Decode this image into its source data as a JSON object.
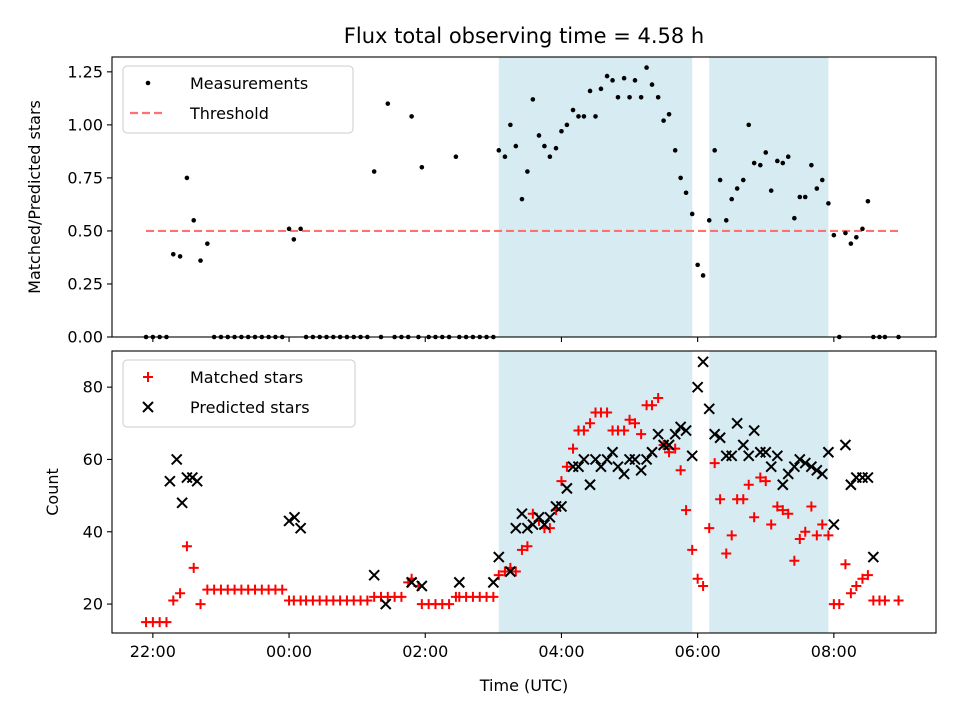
{
  "chart_data": [
    {
      "type": "scatter",
      "title": "Flux total observing time = 4.58 h",
      "xlabel": "",
      "ylabel": "Matched/Predicted stars",
      "ylim": [
        0,
        1.32
      ],
      "yticks": [
        "0.00",
        "0.25",
        "0.50",
        "0.75",
        "1.00",
        "1.25"
      ],
      "ytick_values": [
        0,
        0.25,
        0.5,
        0.75,
        1.0,
        1.25
      ],
      "x_unit": "hours UTC since 00:00",
      "xlim": [
        -2.6,
        9.5
      ],
      "legend": {
        "placement": "top-left",
        "entries": [
          "Measurements",
          "Threshold"
        ]
      },
      "shaded_intervals": [
        [
          3.08,
          5.92
        ],
        [
          6.17,
          7.92
        ]
      ],
      "threshold": {
        "name": "Threshold",
        "value": 0.5,
        "x_range": [
          -2.1,
          8.95
        ],
        "color": "#ff7070"
      },
      "series": [
        {
          "name": "Measurements",
          "color": "#000000",
          "x": [
            -2.1,
            -2.0,
            -1.9,
            -1.8,
            -1.7,
            -1.6,
            -1.5,
            -1.4,
            -1.3,
            -1.2,
            -1.1,
            -1.0,
            -0.9,
            -0.8,
            -0.7,
            -0.6,
            -0.5,
            -0.4,
            -0.3,
            -0.2,
            -0.1,
            0.0,
            0.07,
            0.17,
            0.25,
            0.35,
            0.45,
            0.55,
            0.65,
            0.75,
            0.85,
            0.95,
            1.05,
            1.15,
            1.25,
            1.35,
            1.45,
            1.55,
            1.65,
            1.75,
            1.8,
            1.9,
            1.95,
            2.05,
            2.15,
            2.25,
            2.35,
            2.45,
            2.5,
            2.6,
            2.7,
            2.8,
            2.9,
            3.0,
            3.08,
            3.17,
            3.25,
            3.33,
            3.42,
            3.5,
            3.58,
            3.67,
            3.75,
            3.83,
            3.92,
            4.0,
            4.08,
            4.17,
            4.25,
            4.33,
            4.42,
            4.5,
            4.58,
            4.67,
            4.75,
            4.83,
            4.92,
            5.0,
            5.08,
            5.17,
            5.25,
            5.33,
            5.42,
            5.5,
            5.58,
            5.67,
            5.75,
            5.83,
            5.92,
            6.0,
            6.08,
            6.17,
            6.25,
            6.33,
            6.42,
            6.5,
            6.58,
            6.67,
            6.75,
            6.83,
            6.92,
            7.0,
            7.08,
            7.17,
            7.25,
            7.33,
            7.42,
            7.5,
            7.58,
            7.67,
            7.75,
            7.83,
            7.92,
            8.0,
            8.08,
            8.17,
            8.25,
            8.33,
            8.42,
            8.5,
            8.58,
            8.67,
            8.75,
            8.95
          ],
          "y": [
            0,
            0,
            0,
            0,
            0.39,
            0.38,
            0.75,
            0.55,
            0.36,
            0.44,
            0,
            0,
            0,
            0,
            0,
            0,
            0,
            0,
            0,
            0,
            0,
            0.51,
            0.46,
            0.51,
            0,
            0,
            0,
            0,
            0,
            0,
            0,
            0,
            0,
            0,
            0.78,
            0,
            1.1,
            0,
            0,
            0,
            1.04,
            0,
            0.8,
            0,
            0,
            0,
            0,
            0.85,
            0,
            0,
            0,
            0,
            0,
            0,
            0.88,
            0.85,
            1.0,
            0.9,
            0.65,
            0.78,
            1.12,
            0.95,
            0.9,
            0.85,
            0.89,
            0.97,
            1.0,
            1.07,
            1.04,
            1.04,
            1.16,
            1.04,
            1.17,
            1.23,
            1.21,
            1.13,
            1.22,
            1.13,
            1.21,
            1.13,
            1.27,
            1.19,
            1.13,
            1.02,
            1.05,
            0.88,
            0.75,
            0.68,
            0.58,
            0.34,
            0.29,
            0.55,
            0.88,
            0.74,
            0.55,
            0.65,
            0.7,
            0.74,
            1.0,
            0.82,
            0.81,
            0.87,
            0.69,
            0.83,
            0.82,
            0.85,
            0.56,
            0.66,
            0.66,
            0.81,
            0.7,
            0.74,
            0.63,
            0.48,
            0,
            0.49,
            0.44,
            0.47,
            0.51,
            0.64,
            0,
            0,
            0,
            0
          ]
        }
      ]
    },
    {
      "type": "scatter",
      "title": "",
      "xlabel": "Time (UTC)",
      "ylabel": "Count",
      "ylim": [
        12,
        90
      ],
      "yticks": [
        "20",
        "40",
        "60",
        "80"
      ],
      "ytick_values": [
        20,
        40,
        60,
        80
      ],
      "x_unit": "hours UTC since 00:00",
      "xlim": [
        -2.6,
        9.5
      ],
      "xticks": [
        "22:00",
        "00:00",
        "02:00",
        "04:00",
        "06:00",
        "08:00"
      ],
      "xtick_values": [
        -2,
        0,
        2,
        4,
        6,
        8
      ],
      "legend": {
        "placement": "top-left",
        "entries": [
          "Matched stars",
          "Predicted stars"
        ]
      },
      "shaded_intervals": [
        [
          3.08,
          5.92
        ],
        [
          6.17,
          7.92
        ]
      ],
      "series": [
        {
          "name": "Matched stars",
          "color": "#ff0000",
          "marker": "plus",
          "x": [
            -2.1,
            -2.0,
            -1.9,
            -1.8,
            -1.7,
            -1.6,
            -1.5,
            -1.4,
            -1.3,
            -1.2,
            -1.1,
            -1.0,
            -0.9,
            -0.8,
            -0.7,
            -0.6,
            -0.5,
            -0.4,
            -0.3,
            -0.2,
            -0.1,
            0.0,
            0.07,
            0.17,
            0.25,
            0.35,
            0.45,
            0.55,
            0.65,
            0.75,
            0.85,
            0.95,
            1.05,
            1.15,
            1.25,
            1.35,
            1.45,
            1.55,
            1.65,
            1.75,
            1.8,
            1.9,
            1.95,
            2.05,
            2.15,
            2.25,
            2.35,
            2.45,
            2.5,
            2.6,
            2.7,
            2.8,
            2.9,
            3.0,
            3.08,
            3.17,
            3.25,
            3.33,
            3.42,
            3.5,
            3.58,
            3.67,
            3.75,
            3.83,
            3.92,
            4.0,
            4.08,
            4.17,
            4.25,
            4.33,
            4.42,
            4.5,
            4.58,
            4.67,
            4.75,
            4.83,
            4.92,
            5.0,
            5.08,
            5.17,
            5.25,
            5.33,
            5.42,
            5.5,
            5.58,
            5.67,
            5.75,
            5.83,
            5.92,
            6.0,
            6.08,
            6.17,
            6.25,
            6.33,
            6.42,
            6.5,
            6.58,
            6.67,
            6.75,
            6.83,
            6.92,
            7.0,
            7.08,
            7.17,
            7.25,
            7.33,
            7.42,
            7.5,
            7.58,
            7.67,
            7.75,
            7.83,
            7.92,
            8.0,
            8.08,
            8.17,
            8.25,
            8.33,
            8.42,
            8.5,
            8.58,
            8.67,
            8.75,
            8.95
          ],
          "y": [
            15,
            15,
            15,
            15,
            21,
            23,
            36,
            30,
            20,
            24,
            24,
            24,
            24,
            24,
            24,
            24,
            24,
            24,
            24,
            24,
            24,
            21,
            21,
            21,
            21,
            21,
            21,
            21,
            21,
            21,
            21,
            21,
            21,
            21,
            22,
            22,
            22,
            22,
            22,
            26,
            27,
            25,
            20,
            20,
            20,
            20,
            20,
            22,
            22,
            22,
            22,
            22,
            22,
            22,
            28,
            29,
            30,
            29,
            35,
            36,
            45,
            43,
            41,
            41,
            46,
            54,
            58,
            63,
            68,
            68,
            70,
            73,
            73,
            73,
            68,
            68,
            68,
            71,
            70,
            67,
            75,
            75,
            77,
            64,
            62,
            63,
            57,
            46,
            35,
            27,
            25,
            41,
            59,
            49,
            34,
            39,
            49,
            49,
            53,
            44,
            55,
            54,
            42,
            47,
            46,
            45,
            32,
            38,
            40,
            47,
            39,
            42,
            39,
            20,
            20,
            31,
            23,
            25,
            27,
            28,
            21,
            21,
            21,
            21
          ]
        },
        {
          "name": "Predicted stars",
          "color": "#000000",
          "marker": "x",
          "x": [
            -1.75,
            -1.65,
            -1.57,
            -1.5,
            -1.42,
            -1.35,
            0.0,
            0.08,
            0.17,
            1.25,
            1.42,
            1.8,
            1.95,
            2.5,
            3.0,
            3.08,
            3.25,
            3.33,
            3.42,
            3.5,
            3.58,
            3.67,
            3.75,
            3.83,
            3.92,
            4.0,
            4.08,
            4.17,
            4.25,
            4.33,
            4.42,
            4.5,
            4.58,
            4.67,
            4.75,
            4.83,
            4.92,
            5.0,
            5.08,
            5.17,
            5.25,
            5.33,
            5.42,
            5.5,
            5.58,
            5.67,
            5.75,
            5.83,
            5.92,
            6.0,
            6.08,
            6.17,
            6.25,
            6.33,
            6.42,
            6.5,
            6.58,
            6.67,
            6.75,
            6.83,
            6.92,
            7.0,
            7.08,
            7.17,
            7.25,
            7.33,
            7.42,
            7.5,
            7.58,
            7.67,
            7.75,
            7.83,
            7.92,
            8.0,
            8.17,
            8.25,
            8.33,
            8.42,
            8.5,
            8.58
          ],
          "y": [
            54,
            60,
            48,
            55,
            55,
            54,
            43,
            44,
            41,
            28,
            20,
            26,
            25,
            26,
            26,
            33,
            29,
            41,
            45,
            41,
            42,
            44,
            42,
            44,
            47,
            47,
            52,
            58,
            58,
            60,
            53,
            60,
            58,
            60,
            62,
            58,
            56,
            60,
            60,
            57,
            60,
            62,
            67,
            64,
            64,
            67,
            69,
            68,
            61,
            80,
            87,
            74,
            67,
            66,
            61,
            61,
            70,
            64,
            61,
            68,
            62,
            62,
            58,
            61,
            53,
            56,
            58,
            60,
            59,
            58,
            57,
            56,
            62,
            42,
            64,
            53,
            55,
            55,
            55,
            33
          ]
        }
      ]
    }
  ]
}
